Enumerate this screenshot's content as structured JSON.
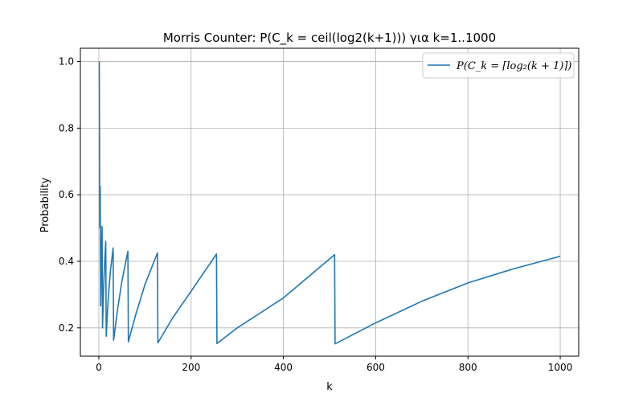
{
  "chart_data": {
    "type": "line",
    "title": "Morris Counter: P(C_k = ceil(log2(k+1))) για k=1..1000",
    "xlabel": "k",
    "ylabel": "Probability",
    "xlim": [
      -40,
      1040
    ],
    "ylim": [
      0.115,
      1.04
    ],
    "x_ticks": [
      0,
      200,
      400,
      600,
      800,
      1000
    ],
    "y_ticks": [
      0.2,
      0.4,
      0.6,
      0.8,
      1.0
    ],
    "x_tick_labels": [
      "0",
      "200",
      "400",
      "600",
      "800",
      "1000"
    ],
    "y_tick_labels": [
      "0.2",
      "0.4",
      "0.6",
      "0.8",
      "1.0"
    ],
    "grid": true,
    "legend_position": "top-right",
    "colors": {
      "series": "#1f77b4",
      "grid": "#b0b0b0",
      "axis": "#000000"
    },
    "series": [
      {
        "name": "P(C_k = ⌈log₂(k + 1)⌉)",
        "x": [
          1,
          2,
          3,
          4,
          5,
          6,
          7,
          8,
          10,
          12,
          15,
          16,
          20,
          25,
          31,
          32,
          40,
          50,
          63,
          64,
          80,
          100,
          127,
          128,
          160,
          200,
          255,
          256,
          300,
          400,
          511,
          512,
          600,
          700,
          800,
          900,
          1000
        ],
        "values": [
          1.0,
          0.5,
          0.625,
          0.266,
          0.36,
          0.44,
          0.505,
          0.2,
          0.3,
          0.38,
          0.46,
          0.175,
          0.28,
          0.37,
          0.44,
          0.163,
          0.25,
          0.34,
          0.43,
          0.158,
          0.24,
          0.33,
          0.425,
          0.155,
          0.23,
          0.31,
          0.422,
          0.153,
          0.2,
          0.29,
          0.42,
          0.152,
          0.215,
          0.28,
          0.335,
          0.378,
          0.415
        ]
      }
    ]
  }
}
